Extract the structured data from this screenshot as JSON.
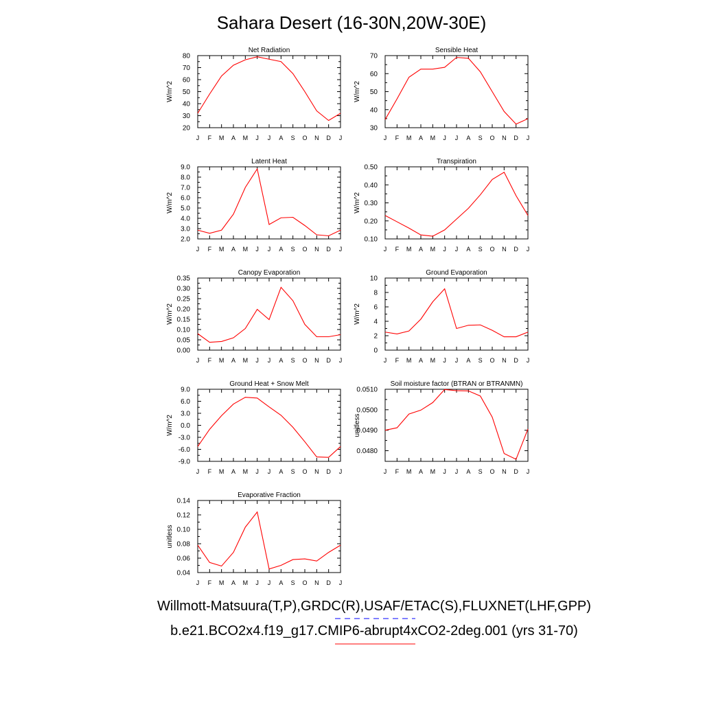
{
  "title": "Sahara Desert (16-30N,20W-30E)",
  "footer": {
    "obs": "Willmott-Matsuura(T,P),GRDC(R),USAF/ETAC(S),FLUXNET(LHF,GPP)",
    "model": "b.e21.BCO2x4.f19_g17.CMIP6-abrupt4xCO2-2deg.001 (yrs 31-70)",
    "obs_line_color": "#0000ff",
    "model_line_color": "#ff0000"
  },
  "chart_data": [
    {
      "type": "line",
      "title": "Net Radiation",
      "ylabel": "W/m^2",
      "categories": [
        "J",
        "F",
        "M",
        "A",
        "M",
        "J",
        "J",
        "A",
        "S",
        "O",
        "N",
        "D",
        "J"
      ],
      "yticks": [
        "20",
        "30",
        "40",
        "50",
        "60",
        "70",
        "80"
      ],
      "ylim": [
        20,
        80
      ],
      "values": [
        32,
        48,
        63,
        72,
        76.5,
        79,
        77,
        75,
        65,
        50,
        34,
        26,
        32
      ],
      "color": "#ff0000"
    },
    {
      "type": "line",
      "title": "Sensible Heat",
      "ylabel": "W/m^2",
      "categories": [
        "J",
        "F",
        "M",
        "A",
        "M",
        "J",
        "J",
        "A",
        "S",
        "O",
        "N",
        "D",
        "J"
      ],
      "yticks": [
        "30",
        "40",
        "50",
        "60",
        "70"
      ],
      "ylim": [
        30,
        70
      ],
      "values": [
        34.5,
        46,
        58,
        62.5,
        62.5,
        63.5,
        69,
        68.5,
        61,
        50,
        39,
        32,
        35
      ],
      "color": "#ff0000"
    },
    {
      "type": "line",
      "title": "Latent Heat",
      "ylabel": "W/m^2",
      "categories": [
        "J",
        "F",
        "M",
        "A",
        "M",
        "J",
        "J",
        "A",
        "S",
        "O",
        "N",
        "D",
        "J"
      ],
      "yticks": [
        "2.0",
        "3.0",
        "4.0",
        "5.0",
        "6.0",
        "7.0",
        "8.0",
        "9.0"
      ],
      "ylim": [
        2,
        9
      ],
      "values": [
        2.85,
        2.55,
        2.85,
        4.4,
        7.0,
        8.8,
        3.4,
        4.05,
        4.1,
        3.3,
        2.4,
        2.3,
        2.85
      ],
      "color": "#ff0000"
    },
    {
      "type": "line",
      "title": "Transpiration",
      "ylabel": "W/m^2",
      "categories": [
        "J",
        "F",
        "M",
        "A",
        "M",
        "J",
        "J",
        "A",
        "S",
        "O",
        "N",
        "D",
        "J"
      ],
      "yticks": [
        "0.10",
        "0.20",
        "0.30",
        "0.40",
        "0.50"
      ],
      "ylim": [
        0.1,
        0.5
      ],
      "values": [
        0.23,
        0.195,
        0.16,
        0.122,
        0.115,
        0.15,
        0.21,
        0.27,
        0.345,
        0.43,
        0.47,
        0.34,
        0.23
      ],
      "color": "#ff0000"
    },
    {
      "type": "line",
      "title": "Canopy Evaporation",
      "ylabel": "W/m^2",
      "categories": [
        "J",
        "F",
        "M",
        "A",
        "M",
        "J",
        "J",
        "A",
        "S",
        "O",
        "N",
        "D",
        "J"
      ],
      "yticks": [
        "0.00",
        "0.05",
        "0.10",
        "0.15",
        "0.20",
        "0.25",
        "0.30",
        "0.35"
      ],
      "ylim": [
        0,
        0.35
      ],
      "values": [
        0.08,
        0.038,
        0.042,
        0.06,
        0.105,
        0.198,
        0.148,
        0.305,
        0.24,
        0.125,
        0.065,
        0.065,
        0.075
      ],
      "color": "#ff0000"
    },
    {
      "type": "line",
      "title": "Ground Evaporation",
      "ylabel": "W/m^2",
      "categories": [
        "J",
        "F",
        "M",
        "A",
        "M",
        "J",
        "J",
        "A",
        "S",
        "O",
        "N",
        "D",
        "J"
      ],
      "yticks": [
        "0",
        "2",
        "4",
        "6",
        "8",
        "10"
      ],
      "ylim": [
        0,
        10
      ],
      "values": [
        2.5,
        2.25,
        2.65,
        4.3,
        6.7,
        8.5,
        3.0,
        3.45,
        3.5,
        2.75,
        1.85,
        1.85,
        2.5
      ],
      "color": "#ff0000"
    },
    {
      "type": "line",
      "title": "Ground Heat + Snow Melt",
      "ylabel": "W/m^2",
      "categories": [
        "J",
        "F",
        "M",
        "A",
        "M",
        "J",
        "J",
        "A",
        "S",
        "O",
        "N",
        "D",
        "J"
      ],
      "yticks": [
        "-9.0",
        "-6.0",
        "-3.0",
        "0.0",
        "3.0",
        "6.0",
        "9.0"
      ],
      "ylim": [
        -9,
        9
      ],
      "values": [
        -5.3,
        -1.0,
        2.4,
        5.3,
        7.0,
        6.8,
        4.6,
        2.5,
        -0.5,
        -4.1,
        -7.9,
        -8.0,
        -5.3
      ],
      "color": "#ff0000"
    },
    {
      "type": "line",
      "title": "Soil moisture factor (BTRAN or BTRANMN)",
      "ylabel": "unitless",
      "categories": [
        "J",
        "F",
        "M",
        "A",
        "M",
        "J",
        "J",
        "A",
        "S",
        "O",
        "N",
        "D",
        "J"
      ],
      "yticks": [
        "0.0480",
        "0.0490",
        "0.0500",
        "0.0510"
      ],
      "ylim": [
        0.04748,
        0.051
      ],
      "values": [
        0.049,
        0.04912,
        0.04979,
        0.04998,
        0.05035,
        0.05099,
        0.05093,
        0.05092,
        0.05067,
        0.04964,
        0.04786,
        0.04758,
        0.04906
      ],
      "color": "#ff0000"
    },
    {
      "type": "line",
      "title": "Evaporative Fraction",
      "ylabel": "unitless",
      "categories": [
        "J",
        "F",
        "M",
        "A",
        "M",
        "J",
        "J",
        "A",
        "S",
        "O",
        "N",
        "D",
        "J"
      ],
      "yticks": [
        "0.04",
        "0.06",
        "0.08",
        "0.10",
        "0.12",
        "0.14"
      ],
      "ylim": [
        0.04,
        0.14
      ],
      "values": [
        0.078,
        0.054,
        0.049,
        0.068,
        0.103,
        0.124,
        0.045,
        0.05,
        0.058,
        0.059,
        0.056,
        0.068,
        0.078
      ],
      "color": "#ff0000"
    }
  ]
}
